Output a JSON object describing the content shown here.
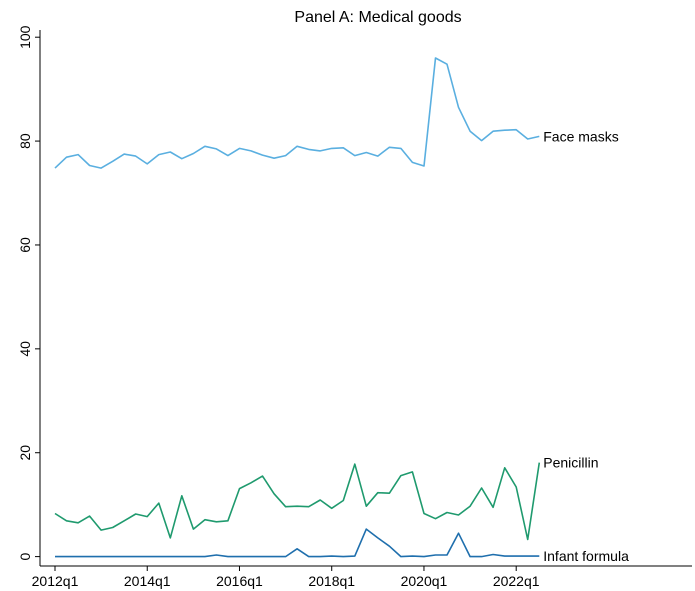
{
  "chart_data": {
    "type": "line",
    "title": "Panel A: Medical goods",
    "xlabel": "",
    "ylabel": "",
    "ylim": [
      0,
      100
    ],
    "y_ticks": [
      0,
      20,
      40,
      60,
      80,
      100
    ],
    "x_tick_labels": [
      "2012q1",
      "2014q1",
      "2016q1",
      "2018q1",
      "2020q1",
      "2022q1"
    ],
    "grid": false,
    "x": [
      "2012q1",
      "2012q2",
      "2012q3",
      "2012q4",
      "2013q1",
      "2013q2",
      "2013q3",
      "2013q4",
      "2014q1",
      "2014q2",
      "2014q3",
      "2014q4",
      "2015q1",
      "2015q2",
      "2015q3",
      "2015q4",
      "2016q1",
      "2016q2",
      "2016q3",
      "2016q4",
      "2017q1",
      "2017q2",
      "2017q3",
      "2017q4",
      "2018q1",
      "2018q2",
      "2018q3",
      "2018q4",
      "2019q1",
      "2019q2",
      "2019q3",
      "2019q4",
      "2020q1",
      "2020q2",
      "2020q3",
      "2020q4",
      "2021q1",
      "2021q2",
      "2021q3",
      "2021q4",
      "2022q1",
      "2022q2",
      "2022q3"
    ],
    "series": [
      {
        "name": "Face masks",
        "color": "#5aafe0",
        "values": [
          74.8,
          76.9,
          77.4,
          75.3,
          74.8,
          76.1,
          77.5,
          77.1,
          75.6,
          77.4,
          77.9,
          76.6,
          77.6,
          79.0,
          78.5,
          77.2,
          78.6,
          78.1,
          77.3,
          76.7,
          77.2,
          79.0,
          78.4,
          78.1,
          78.6,
          78.7,
          77.2,
          77.8,
          77.1,
          78.8,
          78.6,
          75.9,
          75.2,
          96.0,
          94.8,
          86.5,
          81.9,
          80.1,
          81.9,
          82.1,
          82.2,
          80.4,
          80.9
        ]
      },
      {
        "name": "Penicillin",
        "color": "#1f9a6e",
        "values": [
          8.3,
          6.9,
          6.5,
          7.8,
          5.1,
          5.6,
          6.9,
          8.2,
          7.7,
          10.3,
          3.6,
          11.7,
          5.3,
          7.1,
          6.7,
          6.9,
          13.1,
          14.2,
          15.5,
          12.1,
          9.6,
          9.7,
          9.6,
          10.9,
          9.3,
          10.8,
          17.8,
          9.7,
          12.3,
          12.2,
          15.6,
          16.3,
          8.3,
          7.3,
          8.5,
          8.0,
          9.7,
          13.2,
          9.5,
          17.1,
          13.4,
          3.3,
          18.1
        ]
      },
      {
        "name": "Infant formula",
        "color": "#1f6fad",
        "values": [
          0,
          0,
          0,
          0,
          0,
          0,
          0,
          0,
          0,
          0,
          0,
          0,
          0,
          0,
          0.3,
          0,
          0,
          0,
          0,
          0,
          0,
          1.5,
          0,
          0,
          0.1,
          0,
          0.1,
          5.3,
          3.6,
          2.0,
          0,
          0.1,
          0,
          0.3,
          0.3,
          4.5,
          0,
          0,
          0.4,
          0.1,
          0.1,
          0.1,
          0.1
        ]
      }
    ]
  }
}
